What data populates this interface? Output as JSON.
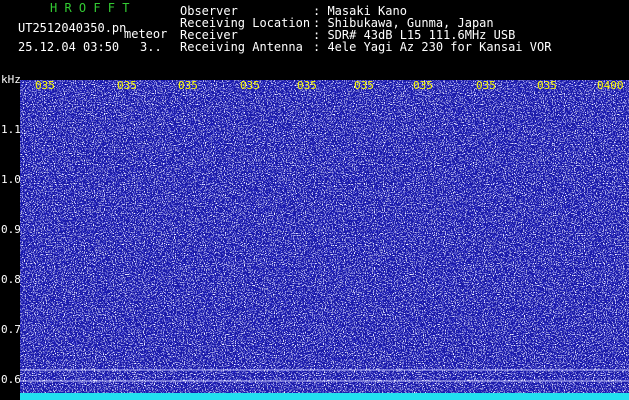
{
  "header": {
    "app": "H R O F F T",
    "file": "UT2512040350.pn",
    "tag": "meteor",
    "datetime": "25.12.04 03:50",
    "extra": "3..",
    "info": [
      {
        "label": "Observer",
        "value": ": Masaki Kano"
      },
      {
        "label": "Receiving Location",
        "value": ": Shibukawa, Gunma, Japan"
      },
      {
        "label": "Receiver",
        "value": ": SDR# 43dB L15 111.6MHz USB"
      },
      {
        "label": "Receiving Antenna",
        "value": ": 4ele Yagi Az 230 for Kansai VOR"
      }
    ]
  },
  "plot": {
    "unit": "kHz",
    "time_labels": [
      "035",
      "035",
      "035",
      "035",
      "035",
      "035",
      "035",
      "035",
      "035",
      "0400"
    ],
    "freq_labels": [
      "1.1",
      "1.0",
      "0.9",
      "0.8",
      "0.7",
      "0.6"
    ]
  }
}
